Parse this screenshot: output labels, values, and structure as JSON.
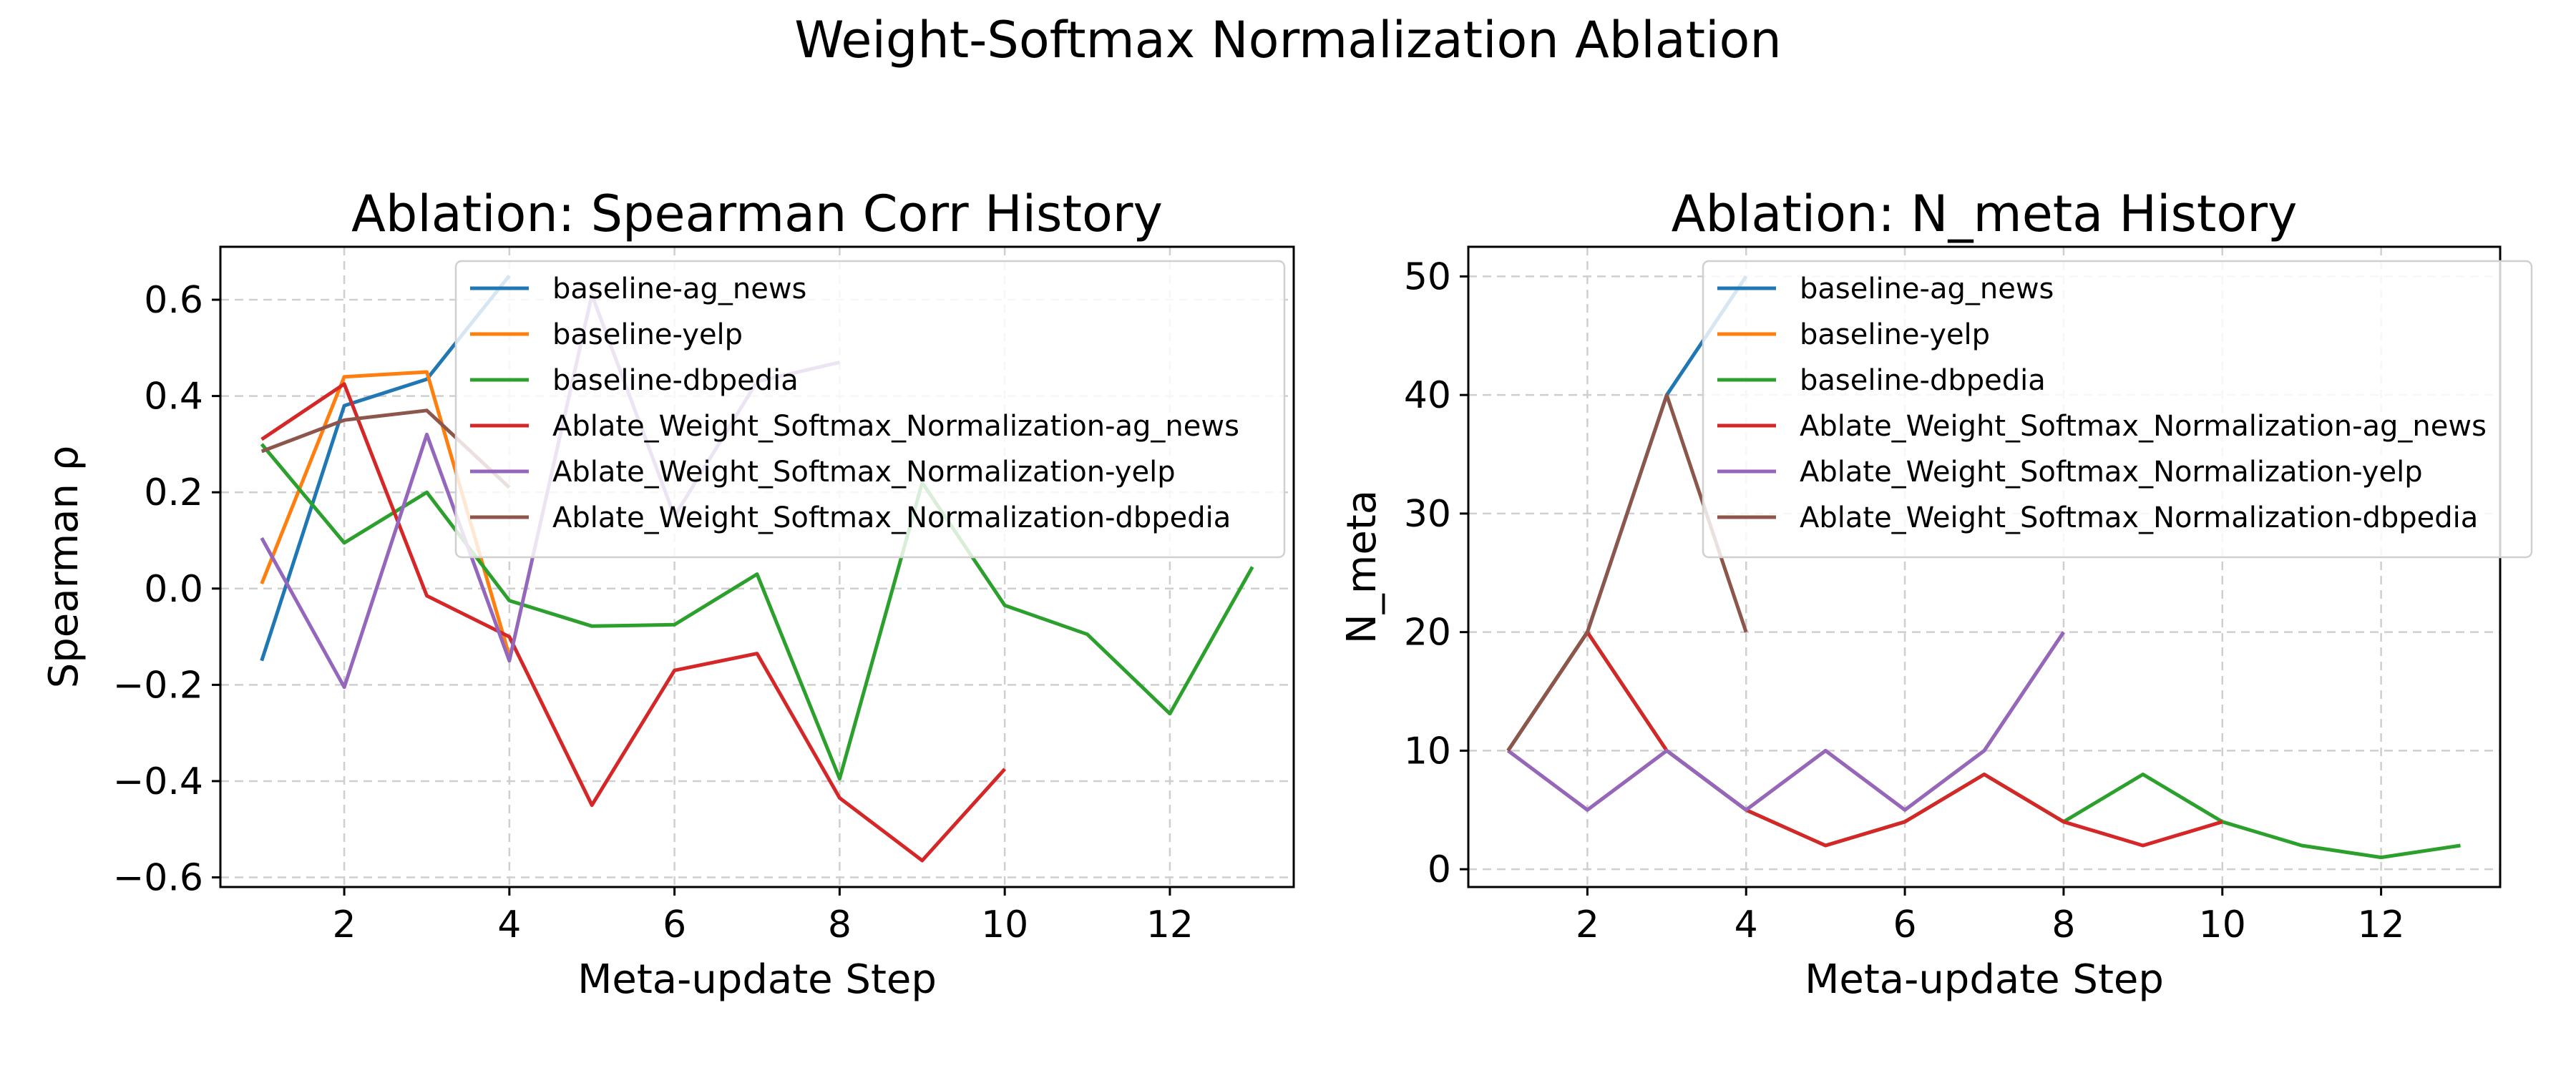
{
  "figure": {
    "title": "Weight-Softmax Normalization Ablation"
  },
  "colors": {
    "blue": "#1f77b4",
    "orange": "#ff7f0e",
    "green": "#2ca02c",
    "red": "#d62728",
    "purple": "#9467bd",
    "brown": "#8c564b"
  },
  "chart_data": [
    {
      "type": "line",
      "title": "Ablation: Spearman Corr History",
      "xlabel": "Meta-update Step",
      "ylabel": "Spearman ρ",
      "xlim": [
        0.5,
        13.5
      ],
      "ylim": [
        -0.62,
        0.71
      ],
      "xticks": [
        2,
        4,
        6,
        8,
        10,
        12
      ],
      "yticks": [
        -0.6,
        -0.4,
        -0.2,
        0.0,
        0.2,
        0.4,
        0.6
      ],
      "ytick_labels": [
        "−0.6",
        "−0.4",
        "−0.2",
        "0.0",
        "0.2",
        "0.4",
        "0.6"
      ],
      "grid": true,
      "legend_position": "upper-right",
      "series": [
        {
          "name": "baseline-ag_news",
          "color": "#1f77b4",
          "x": [
            1,
            2,
            3,
            4
          ],
          "y": [
            -0.15,
            0.38,
            0.435,
            0.65
          ]
        },
        {
          "name": "baseline-yelp",
          "color": "#ff7f0e",
          "x": [
            1,
            2,
            3,
            4
          ],
          "y": [
            0.01,
            0.44,
            0.45,
            -0.14
          ]
        },
        {
          "name": "baseline-dbpedia",
          "color": "#2ca02c",
          "x": [
            1,
            2,
            3,
            4,
            5,
            6,
            7,
            8,
            9,
            10,
            11,
            12,
            13
          ],
          "y": [
            0.3,
            0.095,
            0.2,
            -0.025,
            -0.078,
            -0.075,
            0.03,
            -0.395,
            0.22,
            -0.035,
            -0.095,
            -0.26,
            0.045
          ]
        },
        {
          "name": "Ablate_Weight_Softmax_Normalization-ag_news",
          "color": "#d62728",
          "x": [
            1,
            2,
            3,
            4,
            5,
            6,
            7,
            8,
            9,
            10
          ],
          "y": [
            0.31,
            0.425,
            -0.015,
            -0.1,
            -0.45,
            -0.17,
            -0.135,
            -0.435,
            -0.565,
            -0.375
          ]
        },
        {
          "name": "Ablate_Weight_Softmax_Normalization-yelp",
          "color": "#9467bd",
          "x": [
            1,
            2,
            3,
            4,
            5,
            6,
            7,
            8
          ],
          "y": [
            0.105,
            -0.205,
            0.32,
            -0.15,
            0.61,
            0.15,
            0.43,
            0.47
          ]
        },
        {
          "name": "Ablate_Weight_Softmax_Normalization-dbpedia",
          "color": "#8c564b",
          "x": [
            1,
            2,
            3,
            4
          ],
          "y": [
            0.285,
            0.35,
            0.37,
            0.21
          ]
        }
      ]
    },
    {
      "type": "line",
      "title": "Ablation: N_meta History",
      "xlabel": "Meta-update Step",
      "ylabel": "N_meta",
      "xlim": [
        0.5,
        13.5
      ],
      "ylim": [
        -1.5,
        52.5
      ],
      "xticks": [
        2,
        4,
        6,
        8,
        10,
        12
      ],
      "yticks": [
        0,
        10,
        20,
        30,
        40,
        50
      ],
      "ytick_labels": [
        "0",
        "10",
        "20",
        "30",
        "40",
        "50"
      ],
      "grid": true,
      "legend_position": "upper-right",
      "series": [
        {
          "name": "baseline-ag_news",
          "color": "#1f77b4",
          "x": [
            1,
            2,
            3,
            4
          ],
          "y": [
            10,
            20,
            40,
            50
          ]
        },
        {
          "name": "baseline-yelp",
          "color": "#ff7f0e",
          "x": [
            1,
            2,
            3,
            4,
            5,
            6,
            7,
            8
          ],
          "y": [
            10,
            5,
            10,
            5,
            10,
            5,
            10,
            20
          ]
        },
        {
          "name": "baseline-dbpedia",
          "color": "#2ca02c",
          "x": [
            1,
            2,
            3,
            4,
            5,
            6,
            7,
            8,
            9,
            10,
            11,
            12,
            13
          ],
          "y": [
            10,
            20,
            10,
            5,
            2,
            4,
            8,
            4,
            8,
            4,
            2,
            1,
            2
          ]
        },
        {
          "name": "Ablate_Weight_Softmax_Normalization-ag_news",
          "color": "#d62728",
          "x": [
            1,
            2,
            3,
            4,
            5,
            6,
            7,
            8,
            9,
            10
          ],
          "y": [
            10,
            20,
            10,
            5,
            2,
            4,
            8,
            4,
            2,
            4
          ]
        },
        {
          "name": "Ablate_Weight_Softmax_Normalization-yelp",
          "color": "#9467bd",
          "x": [
            1,
            2,
            3,
            4,
            5,
            6,
            7,
            8
          ],
          "y": [
            10,
            5,
            10,
            5,
            10,
            5,
            10,
            20
          ]
        },
        {
          "name": "Ablate_Weight_Softmax_Normalization-dbpedia",
          "color": "#8c564b",
          "x": [
            1,
            2,
            3,
            4
          ],
          "y": [
            10,
            20,
            40,
            20
          ]
        }
      ]
    }
  ]
}
